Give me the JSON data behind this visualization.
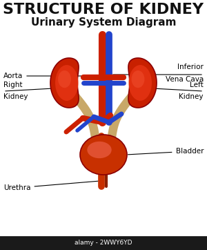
{
  "title": "STRUCTURE OF KIDNEY",
  "subtitle": "Urinary System Diagram",
  "title_fontsize": 16,
  "subtitle_fontsize": 11,
  "bg_color": "#ffffff",
  "labels": {
    "aorta": "Aorta",
    "inferior_vena_cava_line1": "Inferior",
    "inferior_vena_cava_line2": "Vena Cava",
    "right_kidney_line1": "Right",
    "right_kidney_line2": "Kidney",
    "left_kidney_line1": "Left",
    "left_kidney_line2": "Kidney",
    "bladder": "Bladder",
    "urethra": "Urethra"
  },
  "colors": {
    "kidney_dark": "#c82000",
    "kidney_mid": "#e03010",
    "kidney_light": "#e84020",
    "aorta_red": "#cc2000",
    "vena_blue": "#2244cc",
    "ureter_tan": "#c8a868",
    "bladder_dark": "#c83000",
    "bladder_light": "#e05030",
    "label_line": "#000000",
    "text_color": "#111111",
    "bottom_bar": "#1a1a1a"
  },
  "watermark": "alamy - 2WWY6YD"
}
